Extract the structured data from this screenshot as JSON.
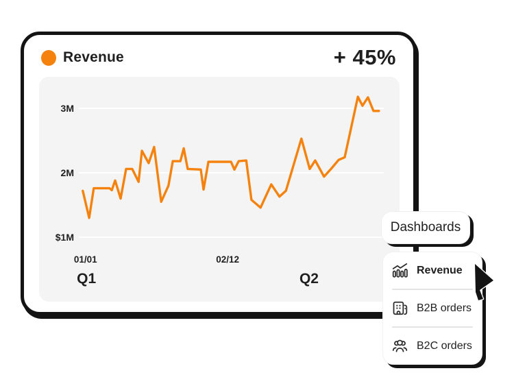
{
  "card": {
    "title": "Revenue",
    "delta": "+ 45%"
  },
  "chart_data": {
    "type": "line",
    "title": "Revenue",
    "xlabel": "",
    "ylabel": "",
    "unit": "USD millions",
    "legend": "none",
    "grid": "horizontal gridlines at 1M, 2M, 3M",
    "line_color": "#F5820D",
    "ylim_millions": [
      1,
      3.4
    ],
    "yticks": [
      {
        "label": "3M",
        "value": 3
      },
      {
        "label": "2M",
        "value": 2
      },
      {
        "label": "$1M",
        "value": 1
      }
    ],
    "xticks": [
      {
        "label": "01/01",
        "pos": 0.022
      },
      {
        "label": "02/12",
        "pos": 0.488
      }
    ],
    "quarter_labels": [
      {
        "label": "Q1",
        "pos": 0.025
      },
      {
        "label": "Q2",
        "pos": 0.755
      }
    ],
    "points": [
      [
        0.013,
        1.72
      ],
      [
        0.034,
        1.3
      ],
      [
        0.049,
        1.76
      ],
      [
        0.101,
        1.76
      ],
      [
        0.108,
        1.73
      ],
      [
        0.119,
        1.88
      ],
      [
        0.137,
        1.6
      ],
      [
        0.155,
        2.06
      ],
      [
        0.175,
        2.06
      ],
      [
        0.196,
        1.86
      ],
      [
        0.207,
        2.34
      ],
      [
        0.229,
        2.15
      ],
      [
        0.247,
        2.4
      ],
      [
        0.27,
        1.55
      ],
      [
        0.294,
        1.8
      ],
      [
        0.308,
        2.18
      ],
      [
        0.333,
        2.18
      ],
      [
        0.344,
        2.38
      ],
      [
        0.357,
        2.06
      ],
      [
        0.4,
        2.05
      ],
      [
        0.409,
        1.74
      ],
      [
        0.425,
        2.17
      ],
      [
        0.499,
        2.17
      ],
      [
        0.51,
        2.05
      ],
      [
        0.524,
        2.18
      ],
      [
        0.549,
        2.19
      ],
      [
        0.566,
        1.58
      ],
      [
        0.596,
        1.46
      ],
      [
        0.631,
        1.82
      ],
      [
        0.658,
        1.63
      ],
      [
        0.679,
        1.72
      ],
      [
        0.73,
        2.53
      ],
      [
        0.757,
        2.06
      ],
      [
        0.775,
        2.19
      ],
      [
        0.804,
        1.94
      ],
      [
        0.829,
        2.07
      ],
      [
        0.852,
        2.2
      ],
      [
        0.872,
        2.24
      ],
      [
        0.915,
        3.18
      ],
      [
        0.93,
        3.04
      ],
      [
        0.948,
        3.17
      ],
      [
        0.966,
        2.96
      ],
      [
        0.984,
        2.96
      ]
    ]
  },
  "dashboards_button": {
    "label": "Dashboards"
  },
  "menu": {
    "items": [
      {
        "label": "Revenue",
        "icon": "chart-growth-icon",
        "active": true
      },
      {
        "label": "B2B orders",
        "icon": "building-icon",
        "active": false
      },
      {
        "label": "B2C orders",
        "icon": "people-group-icon",
        "active": false
      }
    ]
  },
  "colors": {
    "accent_orange": "#F5820D",
    "ink": "#1F1F1F",
    "icon_ink": "#2C2C2C",
    "outline_black": "#141414",
    "chart_panel_bg": "#F4F4F4",
    "gridline": "#FFFFFF",
    "separator": "#E3E3E3"
  }
}
